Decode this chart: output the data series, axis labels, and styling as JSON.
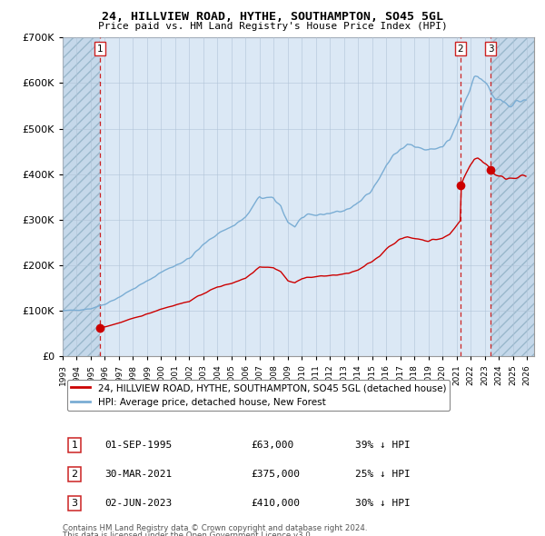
{
  "title": "24, HILLVIEW ROAD, HYTHE, SOUTHAMPTON, SO45 5GL",
  "subtitle": "Price paid vs. HM Land Registry's House Price Index (HPI)",
  "hpi_label": "HPI: Average price, detached house, New Forest",
  "property_label": "24, HILLVIEW ROAD, HYTHE, SOUTHAMPTON, SO45 5GL (detached house)",
  "footer1": "Contains HM Land Registry data © Crown copyright and database right 2024.",
  "footer2": "This data is licensed under the Open Government Licence v3.0.",
  "sales": [
    {
      "label": "1",
      "date_num": 1995.67,
      "price": 63000,
      "hpi_pct": "39% ↓ HPI",
      "date_str": "01-SEP-1995"
    },
    {
      "label": "2",
      "date_num": 2021.25,
      "price": 375000,
      "hpi_pct": "25% ↓ HPI",
      "date_str": "30-MAR-2021"
    },
    {
      "label": "3",
      "date_num": 2023.42,
      "price": 410000,
      "hpi_pct": "30% ↓ HPI",
      "date_str": "02-JUN-2023"
    }
  ],
  "hpi_color": "#7aadd4",
  "price_color": "#cc0000",
  "bg_plot": "#dbe8f5",
  "bg_hatch": "#c5d8ea",
  "grid_color": "#b0c4d8",
  "dashed_color": "#cc2222",
  "ylim": [
    0,
    700000
  ],
  "xlim_start": 1993.0,
  "xlim_end": 2026.5,
  "yticks": [
    0,
    100000,
    200000,
    300000,
    400000,
    500000,
    600000,
    700000
  ]
}
